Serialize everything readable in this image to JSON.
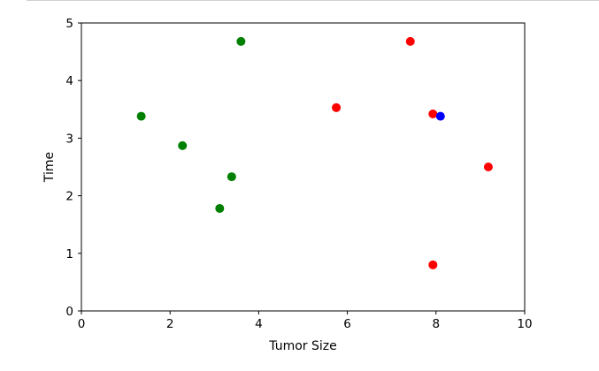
{
  "chart_data": {
    "type": "scatter",
    "xlabel": "Tumor Size",
    "ylabel": "Time",
    "xlim": [
      0,
      10
    ],
    "ylim": [
      0,
      5
    ],
    "xticks": [
      0,
      2,
      4,
      6,
      8,
      10
    ],
    "yticks": [
      0,
      1,
      2,
      3,
      4,
      5
    ],
    "grid": false,
    "series": [
      {
        "color": "#008000",
        "points": [
          {
            "x": 1.35,
            "y": 3.38
          },
          {
            "x": 2.28,
            "y": 2.87
          },
          {
            "x": 3.12,
            "y": 1.78
          },
          {
            "x": 3.39,
            "y": 2.33
          },
          {
            "x": 3.6,
            "y": 4.68
          }
        ]
      },
      {
        "color": "#ff0000",
        "points": [
          {
            "x": 5.75,
            "y": 3.53
          },
          {
            "x": 7.42,
            "y": 4.68
          },
          {
            "x": 7.93,
            "y": 3.42
          },
          {
            "x": 7.93,
            "y": 0.8
          },
          {
            "x": 9.18,
            "y": 2.5
          }
        ]
      },
      {
        "color": "#0000ff",
        "points": [
          {
            "x": 8.1,
            "y": 3.38
          }
        ]
      }
    ]
  }
}
